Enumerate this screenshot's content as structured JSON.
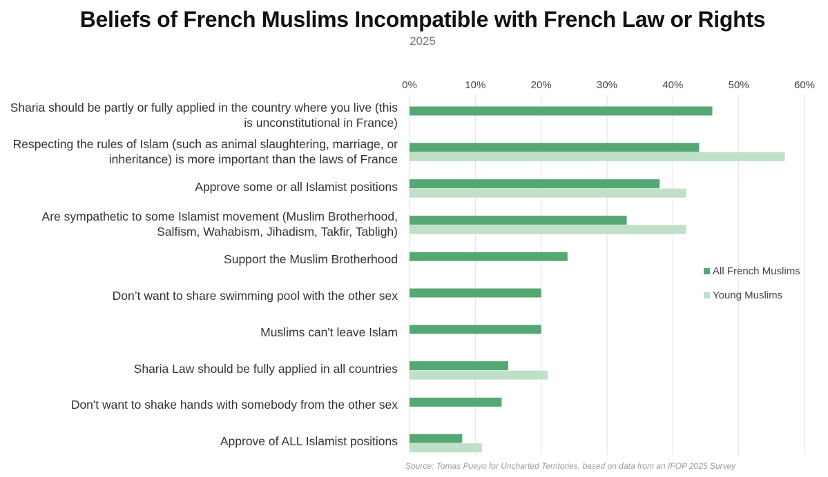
{
  "chart_data": {
    "type": "bar",
    "orientation": "horizontal",
    "title": "Beliefs of French Muslims Incompatible with French Law or Rights",
    "subtitle": "2025",
    "categories": [
      "Sharia should be partly or fully applied in the country where you live (this is unconstitutional in France)",
      "Respecting the rules of Islam (such as animal slaughtering, marriage, or inheritance) is more important than the laws of France",
      "Approve some or all Islamist positions",
      "Are sympathetic to some Islamist movement (Muslim Brotherhood, Salfism, Wahabism, Jihadism, Takfir, Tabligh)",
      "Support the Muslim Brotherhood",
      "Don’t want to share swimming pool with the other sex",
      "Muslims can't leave Islam",
      "Sharia Law should be fully applied in all countries",
      "Don't want to shake hands with somebody from the other sex",
      "Approve of ALL Islamist positions"
    ],
    "category_lines": [
      [
        "Sharia should be partly or fully applied in the country where you live (this",
        "is unconstitutional in France)"
      ],
      [
        "Respecting the rules of Islam (such as animal slaughtering, marriage, or",
        "inheritance) is more important than the laws of France"
      ],
      [
        "Approve some or all Islamist positions"
      ],
      [
        "Are sympathetic to some Islamist movement (Muslim Brotherhood,",
        "Salfism, Wahabism, Jihadism, Takfir, Tabligh)"
      ],
      [
        "Support the Muslim Brotherhood"
      ],
      [
        "Don’t want to share swimming pool with the other sex"
      ],
      [
        "Muslims can't leave Islam"
      ],
      [
        "Sharia Law should be fully applied in all countries"
      ],
      [
        "Don't want to shake hands with somebody from the other sex"
      ],
      [
        "Approve of ALL Islamist positions"
      ]
    ],
    "series": [
      {
        "name": "All French Muslims",
        "color": "#55a873",
        "values": [
          46,
          44,
          38,
          33,
          24,
          20,
          20,
          15,
          14,
          8
        ]
      },
      {
        "name": "Young Muslims",
        "color": "#bfdfc7",
        "values": [
          null,
          57,
          42,
          42,
          null,
          null,
          null,
          21,
          null,
          11
        ]
      }
    ],
    "xlim": [
      0,
      60
    ],
    "x_ticks": [
      "0%",
      "10%",
      "20%",
      "30%",
      "40%",
      "50%",
      "60%"
    ],
    "x_tick_values": [
      0,
      10,
      20,
      30,
      40,
      50,
      60
    ],
    "grid": true,
    "legend_position": "right",
    "source": "Source: Tomas Pueyo for Uncharted Territories, based on data from an IFOP 2025 Survey"
  }
}
